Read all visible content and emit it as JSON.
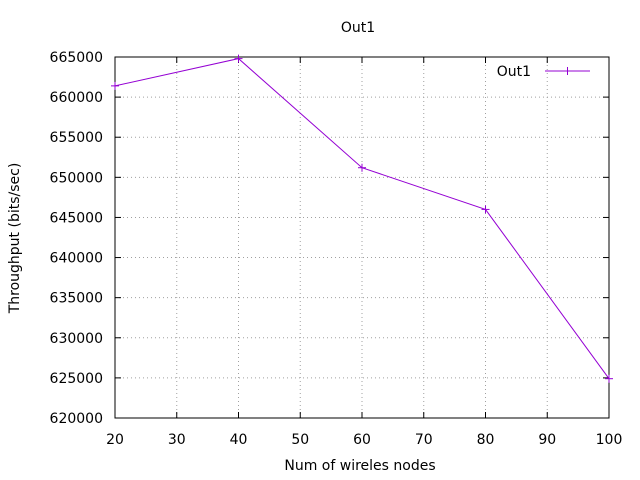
{
  "chart_data": {
    "type": "line",
    "title": "Out1",
    "xlabel": "Num of wireles nodes",
    "ylabel": "Throughput (bits/sec)",
    "xlim": [
      20,
      100
    ],
    "ylim": [
      620000,
      665000
    ],
    "x_ticks": [
      20,
      30,
      40,
      50,
      60,
      70,
      80,
      90,
      100
    ],
    "y_ticks": [
      620000,
      625000,
      630000,
      635000,
      640000,
      645000,
      650000,
      655000,
      660000,
      665000
    ],
    "grid": true,
    "legend_position": "top-right",
    "series": [
      {
        "name": "Out1",
        "color": "#9400d3",
        "marker": "plus",
        "x": [
          20,
          40,
          60,
          80,
          100
        ],
        "y": [
          661400,
          664800,
          651200,
          646000,
          624900
        ]
      }
    ]
  }
}
